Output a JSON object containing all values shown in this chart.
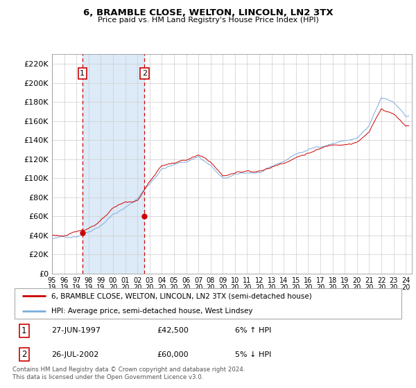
{
  "title": "6, BRAMBLE CLOSE, WELTON, LINCOLN, LN2 3TX",
  "subtitle": "Price paid vs. HM Land Registry's House Price Index (HPI)",
  "legend_line1": "6, BRAMBLE CLOSE, WELTON, LINCOLN, LN2 3TX (semi-detached house)",
  "legend_line2": "HPI: Average price, semi-detached house, West Lindsey",
  "footer": "Contains HM Land Registry data © Crown copyright and database right 2024.\nThis data is licensed under the Open Government Licence v3.0.",
  "sale1": {
    "label": "1",
    "date": "27-JUN-1997",
    "price": "£42,500",
    "hpi": "6% ↑ HPI",
    "x_year": 1997.49,
    "y_val": 42500
  },
  "sale2": {
    "label": "2",
    "date": "26-JUL-2002",
    "price": "£60,000",
    "hpi": "5% ↓ HPI",
    "x_year": 2002.58,
    "y_val": 60000
  },
  "price_color": "#cc0000",
  "hpi_color": "#7aaddb",
  "shade_color": "#ddeaf7",
  "grid_color": "#cccccc",
  "ylim": [
    0,
    230000
  ],
  "yticks": [
    0,
    20000,
    40000,
    60000,
    80000,
    100000,
    120000,
    140000,
    160000,
    180000,
    200000,
    220000
  ],
  "xlim_start": 1995.0,
  "xlim_end": 2024.5,
  "xtick_years": [
    1995,
    1996,
    1997,
    1998,
    1999,
    2000,
    2001,
    2002,
    2003,
    2004,
    2005,
    2006,
    2007,
    2008,
    2009,
    2010,
    2011,
    2012,
    2013,
    2014,
    2015,
    2016,
    2017,
    2018,
    2019,
    2020,
    2021,
    2022,
    2023,
    2024
  ]
}
